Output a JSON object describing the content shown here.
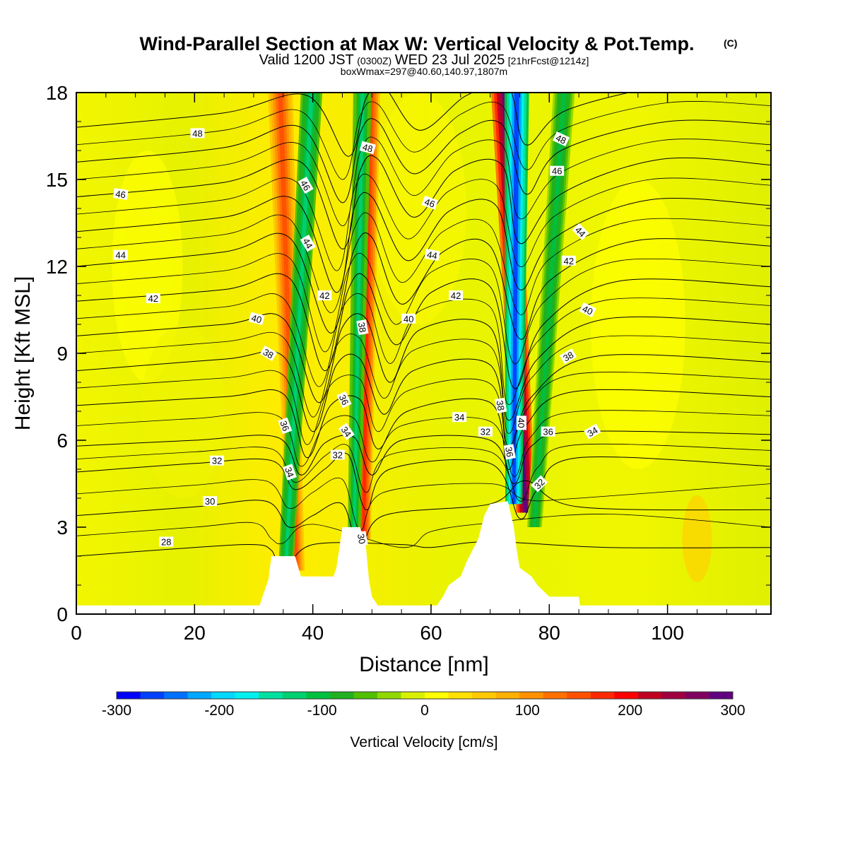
{
  "chart_data": {
    "type": "heatmap",
    "title": "Wind-Parallel Section at Max W: Vertical Velocity & Pot.Temp.",
    "title_mark": "(C)",
    "subtitle": {
      "valid": "Valid 1200 JST",
      "utc": "(0300Z)",
      "date": "WED 23 Jul 2025",
      "forecast": "[21hrFcst@1214z]"
    },
    "box_info": "boxWmax=297@40.60,140.97,1807m",
    "xlabel": "Distance [nm]",
    "ylabel": "Height [Kft MSL]",
    "xlim": [
      0,
      117.5
    ],
    "ylim": [
      0,
      18
    ],
    "x_ticks": [
      0,
      20,
      40,
      60,
      80,
      100
    ],
    "y_ticks": [
      0,
      3,
      6,
      9,
      12,
      15,
      18
    ],
    "colorbar": {
      "label": "Vertical Velocity [cm/s]",
      "range": [
        -300,
        300
      ],
      "ticks": [
        -300,
        -200,
        -100,
        0,
        100,
        200,
        300
      ],
      "colors": [
        "#0000ff",
        "#0040ff",
        "#0070ff",
        "#00a8ff",
        "#00d8ff",
        "#00f0f0",
        "#00e0a0",
        "#00d070",
        "#00c040",
        "#20b020",
        "#50c000",
        "#90d800",
        "#d8f000",
        "#ffff00",
        "#ffe000",
        "#ffc800",
        "#ffb000",
        "#ff9000",
        "#ff7000",
        "#ff5000",
        "#ff2800",
        "#ff0000",
        "#c00020",
        "#a00040",
        "#800060",
        "#600080"
      ]
    },
    "terrain_kft": [
      [
        0,
        0.3
      ],
      [
        31,
        0.3
      ],
      [
        31.5,
        0.6
      ],
      [
        32.5,
        1.2
      ],
      [
        33,
        2.0
      ],
      [
        37,
        2.0
      ],
      [
        38,
        1.3
      ],
      [
        43.5,
        1.3
      ],
      [
        44,
        1.6
      ],
      [
        44.5,
        2.3
      ],
      [
        45,
        3.0
      ],
      [
        48,
        3.0
      ],
      [
        49,
        2.3
      ],
      [
        49.5,
        1.2
      ],
      [
        50,
        0.6
      ],
      [
        51,
        0.3
      ],
      [
        61,
        0.3
      ],
      [
        62,
        0.6
      ],
      [
        63,
        1.0
      ],
      [
        65,
        1.3
      ],
      [
        66,
        1.8
      ],
      [
        67,
        2.2
      ],
      [
        68,
        2.6
      ],
      [
        68.5,
        3.0
      ],
      [
        69,
        3.4
      ],
      [
        70,
        3.8
      ],
      [
        73,
        3.9
      ],
      [
        74,
        3.0
      ],
      [
        74.5,
        2.2
      ],
      [
        75,
        1.6
      ],
      [
        77,
        1.3
      ],
      [
        78,
        1.0
      ],
      [
        80,
        0.6
      ],
      [
        85,
        0.6
      ],
      [
        85.2,
        0.3
      ],
      [
        117.5,
        0.3
      ]
    ],
    "series": [
      {
        "values": [
          [
            0,
            2.0
          ],
          [
            20,
            2.3
          ],
          [
            30,
            2.4
          ],
          [
            33,
            2.2
          ],
          [
            35,
            1.5
          ],
          [
            40,
            2.4
          ],
          [
            55,
            2.4
          ],
          [
            60,
            2.3
          ],
          [
            70,
            2.5
          ],
          [
            90,
            2.3
          ],
          [
            117.5,
            2.3
          ]
        ]
      },
      {
        "values": [
          [
            0,
            3.4
          ],
          [
            20,
            3.7
          ],
          [
            32,
            3.9
          ],
          [
            36,
            3.0
          ],
          [
            40,
            3.4
          ],
          [
            45,
            3.8
          ],
          [
            48,
            2.2
          ],
          [
            52,
            3.4
          ],
          [
            70,
            3.8
          ],
          [
            76,
            4.6
          ],
          [
            85,
            3.7
          ],
          [
            117.5,
            3.6
          ]
        ]
      },
      {
        "values": [
          [
            0,
            4.9
          ],
          [
            20,
            5.2
          ],
          [
            33,
            5.3
          ],
          [
            37,
            4.3
          ],
          [
            42,
            5.0
          ],
          [
            46,
            5.5
          ],
          [
            49,
            3.6
          ],
          [
            53,
            5.0
          ],
          [
            70,
            5.2
          ],
          [
            75,
            3.3
          ],
          [
            78,
            4.3
          ],
          [
            85,
            5.4
          ],
          [
            117.5,
            5.1
          ]
        ]
      },
      {
        "values": [
          [
            0,
            5.8
          ],
          [
            20,
            6.0
          ],
          [
            34,
            6.1
          ],
          [
            38,
            4.8
          ],
          [
            42,
            5.9
          ],
          [
            47,
            6.1
          ],
          [
            50,
            4.8
          ],
          [
            55,
            6.0
          ],
          [
            70,
            6.0
          ],
          [
            74,
            4.5
          ],
          [
            77,
            5.8
          ],
          [
            85,
            6.3
          ],
          [
            117.5,
            6.2
          ]
        ]
      },
      {
        "values": [
          [
            0,
            7.2
          ],
          [
            25,
            7.5
          ],
          [
            35,
            7.6
          ],
          [
            39,
            5.4
          ],
          [
            43,
            7.2
          ],
          [
            48,
            7.4
          ],
          [
            51,
            5.7
          ],
          [
            56,
            7.0
          ],
          [
            70,
            7.3
          ],
          [
            73,
            5.0
          ],
          [
            76,
            6.5
          ],
          [
            85,
            7.7
          ],
          [
            117.5,
            7.5
          ]
        ]
      },
      {
        "values": [
          [
            0,
            8.4
          ],
          [
            25,
            8.8
          ],
          [
            35,
            8.9
          ],
          [
            40,
            6.3
          ],
          [
            44,
            8.6
          ],
          [
            48,
            8.8
          ],
          [
            52,
            6.9
          ],
          [
            57,
            8.4
          ],
          [
            70,
            8.6
          ],
          [
            73,
            5.8
          ],
          [
            77,
            7.5
          ],
          [
            88,
            8.9
          ],
          [
            117.5,
            8.7
          ]
        ]
      },
      {
        "values": [
          [
            0,
            9.6
          ],
          [
            25,
            10.0
          ],
          [
            35,
            10.2
          ],
          [
            41,
            7.3
          ],
          [
            45,
            9.9
          ],
          [
            49,
            10.2
          ],
          [
            53,
            8.0
          ],
          [
            58,
            9.8
          ],
          [
            70,
            9.9
          ],
          [
            73,
            6.7
          ],
          [
            78,
            8.8
          ],
          [
            90,
            10.2
          ],
          [
            117.5,
            10.0
          ]
        ]
      },
      {
        "values": [
          [
            0,
            10.8
          ],
          [
            25,
            11.2
          ],
          [
            36,
            11.6
          ],
          [
            42,
            8.4
          ],
          [
            46,
            11.2
          ],
          [
            49,
            11.6
          ],
          [
            54,
            9.3
          ],
          [
            60,
            11.1
          ],
          [
            70,
            11.3
          ],
          [
            74,
            7.8
          ],
          [
            79,
            10.0
          ],
          [
            92,
            11.5
          ],
          [
            117.5,
            11.3
          ]
        ]
      },
      {
        "values": [
          [
            0,
            12.0
          ],
          [
            25,
            12.5
          ],
          [
            36,
            13.0
          ],
          [
            43,
            9.7
          ],
          [
            47,
            12.6
          ],
          [
            50,
            13.0
          ],
          [
            55,
            10.7
          ],
          [
            62,
            12.5
          ],
          [
            70,
            12.7
          ],
          [
            75,
            9.5
          ],
          [
            80,
            11.5
          ],
          [
            95,
            12.9
          ],
          [
            117.5,
            12.7
          ]
        ]
      },
      {
        "values": [
          [
            0,
            13.2
          ],
          [
            25,
            13.7
          ],
          [
            37,
            14.3
          ],
          [
            44,
            11.1
          ],
          [
            47,
            14.0
          ],
          [
            50,
            14.4
          ],
          [
            56,
            12.2
          ],
          [
            63,
            13.9
          ],
          [
            71,
            14.1
          ],
          [
            75,
            11.2
          ],
          [
            81,
            13.0
          ],
          [
            97,
            14.3
          ],
          [
            117.5,
            14.1
          ]
        ]
      },
      {
        "values": [
          [
            0,
            14.4
          ],
          [
            25,
            14.9
          ],
          [
            38,
            15.6
          ],
          [
            45,
            12.6
          ],
          [
            48,
            15.3
          ],
          [
            51,
            15.7
          ],
          [
            57,
            13.7
          ],
          [
            64,
            15.3
          ],
          [
            72,
            15.5
          ],
          [
            75,
            12.8
          ],
          [
            82,
            14.5
          ],
          [
            99,
            15.7
          ],
          [
            117.5,
            15.5
          ]
        ]
      },
      {
        "values": [
          [
            0,
            15.6
          ],
          [
            25,
            16.1
          ],
          [
            38,
            16.8
          ],
          [
            45,
            14.2
          ],
          [
            48,
            16.6
          ],
          [
            51,
            17.0
          ],
          [
            57,
            15.2
          ],
          [
            65,
            16.6
          ],
          [
            72,
            16.9
          ],
          [
            76,
            14.5
          ],
          [
            82,
            16.0
          ],
          [
            100,
            17.0
          ],
          [
            117.5,
            16.9
          ]
        ]
      },
      {
        "values": [
          [
            0,
            16.8
          ],
          [
            25,
            17.3
          ],
          [
            39,
            17.9
          ],
          [
            46,
            15.8
          ],
          [
            49,
            17.8
          ],
          [
            52,
            18.2
          ],
          [
            58,
            16.7
          ],
          [
            66,
            17.9
          ],
          [
            73,
            18.2
          ],
          [
            76,
            16.2
          ],
          [
            83,
            17.4
          ],
          [
            102,
            18.3
          ],
          [
            117.5,
            18.2
          ]
        ]
      }
    ],
    "contour_labels": [
      {
        "text": "48",
        "x": 20.5,
        "y": 16.6,
        "angle": 0
      },
      {
        "text": "46",
        "x": 7.5,
        "y": 14.5,
        "angle": 8
      },
      {
        "text": "44",
        "x": 7.5,
        "y": 12.4,
        "angle": 0
      },
      {
        "text": "42",
        "x": 13,
        "y": 10.9,
        "angle": 0
      },
      {
        "text": "40",
        "x": 30.5,
        "y": 10.2,
        "angle": 15
      },
      {
        "text": "38",
        "x": 32.5,
        "y": 9.0,
        "angle": 30
      },
      {
        "text": "36",
        "x": 35.3,
        "y": 6.5,
        "angle": 70
      },
      {
        "text": "34",
        "x": 36.1,
        "y": 4.9,
        "angle": 70
      },
      {
        "text": "32",
        "x": 23.8,
        "y": 5.3,
        "angle": 0
      },
      {
        "text": "30",
        "x": 22.6,
        "y": 3.9,
        "angle": 0
      },
      {
        "text": "28",
        "x": 15.2,
        "y": 2.5,
        "angle": 0
      },
      {
        "text": "46",
        "x": 38.8,
        "y": 14.8,
        "angle": 60
      },
      {
        "text": "44",
        "x": 39.2,
        "y": 12.8,
        "angle": 60
      },
      {
        "text": "42",
        "x": 42,
        "y": 11.0,
        "angle": 0
      },
      {
        "text": "48",
        "x": 49.3,
        "y": 16.1,
        "angle": 15
      },
      {
        "text": "46",
        "x": 59.8,
        "y": 14.2,
        "angle": 20
      },
      {
        "text": "44",
        "x": 60.2,
        "y": 12.4,
        "angle": 10
      },
      {
        "text": "42",
        "x": 64.2,
        "y": 11.0,
        "angle": 0
      },
      {
        "text": "40",
        "x": 56.2,
        "y": 10.2,
        "angle": 0
      },
      {
        "text": "38",
        "x": 48.4,
        "y": 9.9,
        "angle": 80
      },
      {
        "text": "36",
        "x": 45.3,
        "y": 7.4,
        "angle": 65
      },
      {
        "text": "34",
        "x": 45.7,
        "y": 6.3,
        "angle": 55
      },
      {
        "text": "32",
        "x": 44.2,
        "y": 5.5,
        "angle": 0
      },
      {
        "text": "30",
        "x": 48.3,
        "y": 2.6,
        "angle": 80
      },
      {
        "text": "34",
        "x": 64.8,
        "y": 6.8,
        "angle": 0
      },
      {
        "text": "32",
        "x": 69.2,
        "y": 6.3,
        "angle": 0
      },
      {
        "text": "38",
        "x": 71.8,
        "y": 7.2,
        "angle": 80
      },
      {
        "text": "40",
        "x": 75.3,
        "y": 6.6,
        "angle": 90
      },
      {
        "text": "36",
        "x": 73.3,
        "y": 5.6,
        "angle": 80
      },
      {
        "text": "36",
        "x": 79.8,
        "y": 6.3,
        "angle": 0
      },
      {
        "text": "32",
        "x": 78.3,
        "y": 4.5,
        "angle": -45
      },
      {
        "text": "34",
        "x": 87.3,
        "y": 6.3,
        "angle": -30
      },
      {
        "text": "38",
        "x": 83.2,
        "y": 8.9,
        "angle": -30
      },
      {
        "text": "40",
        "x": 86.5,
        "y": 10.5,
        "angle": 25
      },
      {
        "text": "42",
        "x": 83.3,
        "y": 12.2,
        "angle": 0
      },
      {
        "text": "44",
        "x": 85.3,
        "y": 13.2,
        "angle": 45
      },
      {
        "text": "46",
        "x": 81.3,
        "y": 15.3,
        "angle": 0
      },
      {
        "text": "48",
        "x": 82.0,
        "y": 16.4,
        "angle": 25
      }
    ],
    "velocity_features": [
      {
        "kind": "updraft",
        "w_max": 150,
        "bottom": [
          37.2,
          1.5
        ],
        "top": [
          34.5,
          18.0
        ],
        "width": 1.6
      },
      {
        "kind": "downdraft",
        "w_min": -130,
        "bottom": [
          35.5,
          1.8
        ],
        "top": [
          39.8,
          18.0
        ],
        "width": 1.4
      },
      {
        "kind": "updraft",
        "w_max": 170,
        "bottom": [
          48.6,
          2.6
        ],
        "top": [
          49.6,
          18.0
        ],
        "width": 1.4
      },
      {
        "kind": "downdraft",
        "w_min": -120,
        "bottom": [
          47.0,
          2.8
        ],
        "top": [
          48.4,
          18.0
        ],
        "width": 1.2
      },
      {
        "kind": "updraft",
        "w_max": 297,
        "bottom": [
          76.0,
          3.5
        ],
        "top": [
          72.5,
          18.0
        ],
        "width": 1.8
      },
      {
        "kind": "downdraft",
        "w_min": -260,
        "bottom": [
          74.0,
          3.8
        ],
        "top": [
          74.5,
          18.0
        ],
        "width": 1.6
      },
      {
        "kind": "downdraft",
        "w_min": -100,
        "bottom": [
          77.5,
          3.0
        ],
        "top": [
          82.5,
          18.0
        ],
        "width": 1.4
      }
    ]
  }
}
